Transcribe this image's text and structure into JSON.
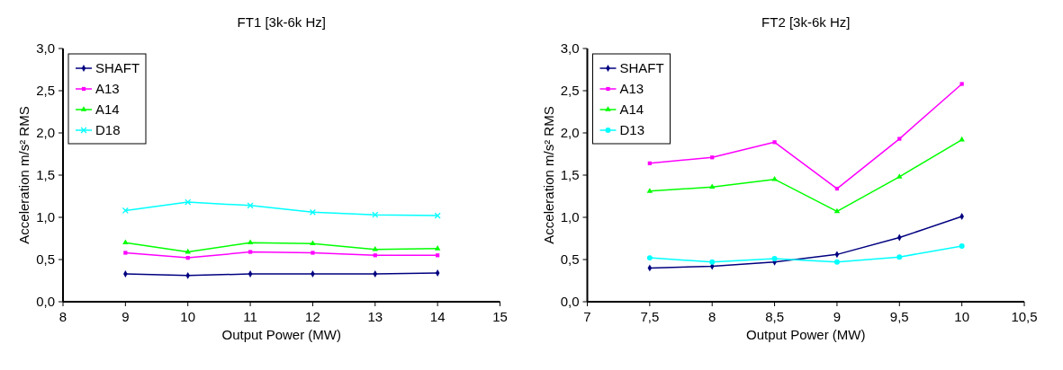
{
  "chart_data": [
    {
      "type": "line",
      "title": "FT1 [3k-6k Hz]",
      "xlabel": "Output Power (MW)",
      "ylabel": "Acceleration m/s² RMS",
      "x": [
        9,
        10,
        11,
        12,
        13,
        14
      ],
      "xlim": [
        8,
        15
      ],
      "xticks": [
        8,
        9,
        10,
        11,
        12,
        13,
        14,
        15
      ],
      "ylim": [
        0,
        3
      ],
      "yticks": [
        {
          "value": 0,
          "label": "0,0"
        },
        {
          "value": 0.5,
          "label": "0,5"
        },
        {
          "value": 1,
          "label": "1,0"
        },
        {
          "value": 1.5,
          "label": "1,5"
        },
        {
          "value": 2,
          "label": "2,0"
        },
        {
          "value": 2.5,
          "label": "2,5"
        },
        {
          "value": 3,
          "label": "3,0"
        }
      ],
      "legend": "top left",
      "grid": false,
      "line_style": "solid",
      "series": [
        {
          "name": "SHAFT",
          "color": "#000080",
          "marker": "diamond",
          "values": [
            0.33,
            0.31,
            0.33,
            0.33,
            0.33,
            0.34
          ]
        },
        {
          "name": "A13",
          "color": "#ff00ff",
          "marker": "square",
          "values": [
            0.58,
            0.52,
            0.59,
            0.58,
            0.55,
            0.55
          ]
        },
        {
          "name": "A14",
          "color": "#00ff00",
          "marker": "triangle",
          "values": [
            0.7,
            0.59,
            0.7,
            0.69,
            0.62,
            0.63
          ]
        },
        {
          "name": "D18",
          "color": "#00ffff",
          "marker": "cross",
          "values": [
            1.08,
            1.18,
            1.14,
            1.06,
            1.03,
            1.02
          ]
        }
      ]
    },
    {
      "type": "line",
      "title": "FT2 [3k-6k Hz]",
      "xlabel": "Output Power (MW)",
      "ylabel": "Acceleration m/s² RMS",
      "x": [
        7.5,
        8,
        8.5,
        9,
        9.5,
        10
      ],
      "xlim": [
        7,
        10.5
      ],
      "xticks": [
        7,
        {
          "value": 7.5,
          "label": "7,5"
        },
        8,
        {
          "value": 8.5,
          "label": "8,5"
        },
        9,
        {
          "value": 9.5,
          "label": "9,5"
        },
        10,
        {
          "value": 10.5,
          "label": "10,5"
        }
      ],
      "ylim": [
        0,
        3
      ],
      "yticks": [
        {
          "value": 0,
          "label": "0,0"
        },
        {
          "value": 0.5,
          "label": "0,5"
        },
        {
          "value": 1,
          "label": "1,0"
        },
        {
          "value": 1.5,
          "label": "1,5"
        },
        {
          "value": 2,
          "label": "2,0"
        },
        {
          "value": 2.5,
          "label": "2,5"
        },
        {
          "value": 3,
          "label": "3,0"
        }
      ],
      "legend": "top left",
      "grid": false,
      "line_style": "solid",
      "series": [
        {
          "name": "SHAFT",
          "color": "#000080",
          "marker": "diamond",
          "values": [
            0.4,
            0.42,
            0.47,
            0.56,
            0.76,
            1.01
          ]
        },
        {
          "name": "A13",
          "color": "#ff00ff",
          "marker": "square",
          "values": [
            1.64,
            1.71,
            1.89,
            1.34,
            1.93,
            2.58
          ]
        },
        {
          "name": "A14",
          "color": "#00ff00",
          "marker": "triangle",
          "values": [
            1.31,
            1.36,
            1.45,
            1.07,
            1.48,
            1.92
          ]
        },
        {
          "name": "D13",
          "color": "#00ffff",
          "marker": "circle",
          "values": [
            0.52,
            0.47,
            0.51,
            0.47,
            0.53,
            0.66
          ]
        }
      ]
    }
  ]
}
